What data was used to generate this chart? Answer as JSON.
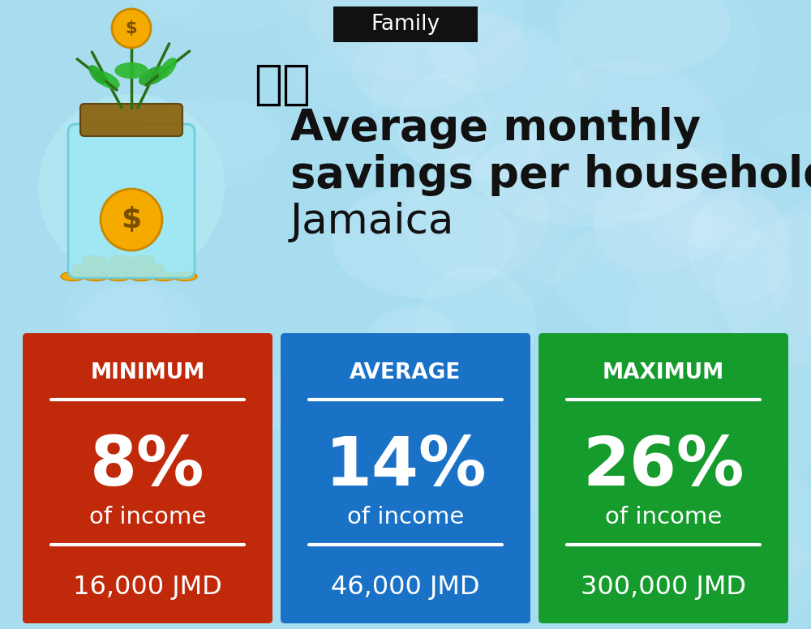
{
  "title_tag": "Family",
  "title_tag_bg": "#111111",
  "title_tag_color": "#ffffff",
  "headline_bold_line1": "Average monthly",
  "headline_bold_line2": "savings per household in",
  "headline_normal": "Jamaica",
  "bg_color": "#a8ddf0",
  "flag_emoji": "🇯🇲",
  "cards": [
    {
      "label": "MINIMUM",
      "percent": "8%",
      "sub": "of income",
      "value": "16,000 JMD",
      "color": "#c0290a"
    },
    {
      "label": "AVERAGE",
      "percent": "14%",
      "sub": "of income",
      "value": "46,000 JMD",
      "color": "#1a72c7"
    },
    {
      "label": "MAXIMUM",
      "percent": "26%",
      "sub": "of income",
      "value": "300,000 JMD",
      "color": "#169b2d"
    }
  ],
  "card_text_color": "#ffffff",
  "divider_color": "#ffffff"
}
